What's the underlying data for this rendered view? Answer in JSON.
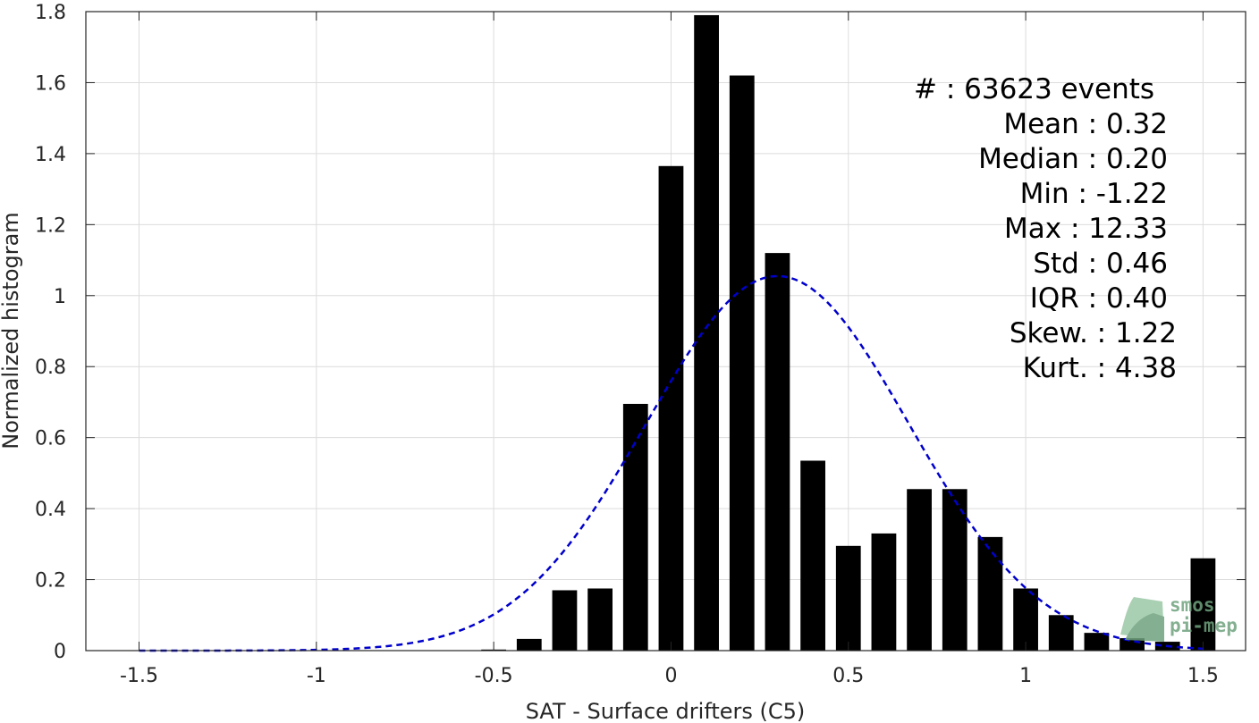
{
  "chart_data": {
    "type": "bar",
    "xlabel": "SAT - Surface drifters (C5)",
    "ylabel": "Normalized histogram",
    "xlim": [
      -1.65,
      1.62
    ],
    "ylim": [
      0,
      1.8
    ],
    "xticks": [
      -1.5,
      -1,
      -0.5,
      0,
      0.5,
      1,
      1.5
    ],
    "xtick_labels": [
      "-1.5",
      "-1",
      "-0.5",
      "0",
      "0.5",
      "1",
      "1.5"
    ],
    "yticks": [
      0,
      0.2,
      0.4,
      0.6,
      0.8,
      1,
      1.2,
      1.4,
      1.6,
      1.8
    ],
    "ytick_labels": [
      "0",
      "0.2",
      "0.4",
      "0.6",
      "0.8",
      "1",
      "1.2",
      "1.4",
      "1.6",
      "1.8"
    ],
    "grid": true,
    "bar_width": 0.07,
    "bar_color": "#000000",
    "bars": {
      "x": [
        -0.5,
        -0.4,
        -0.3,
        -0.2,
        -0.1,
        0.0,
        0.1,
        0.2,
        0.3,
        0.4,
        0.5,
        0.6,
        0.7,
        0.8,
        0.9,
        1.0,
        1.1,
        1.2,
        1.3,
        1.4,
        1.5
      ],
      "values": [
        0.003,
        0.033,
        0.17,
        0.175,
        0.695,
        1.365,
        1.79,
        1.62,
        1.12,
        0.535,
        0.295,
        0.33,
        0.455,
        0.455,
        0.32,
        0.175,
        0.1,
        0.05,
        0.035,
        0.025,
        0.26
      ]
    },
    "fit_curve": {
      "style": "dashed",
      "color": "#0000cc",
      "mean": 0.3,
      "std": 0.37,
      "peak": 1.055,
      "x_range": [
        -1.5,
        1.5
      ]
    },
    "stats": [
      "#  : 63623 events",
      "Mean : 0.32",
      "Median : 0.20",
      "Min : -1.22",
      "Max : 12.33",
      "Std : 0.46",
      "IQR : 0.40",
      "Skew. : 1.22",
      "Kurt. : 4.38"
    ]
  },
  "logo": {
    "line1": "smos",
    "line2": "pi-mep"
  }
}
